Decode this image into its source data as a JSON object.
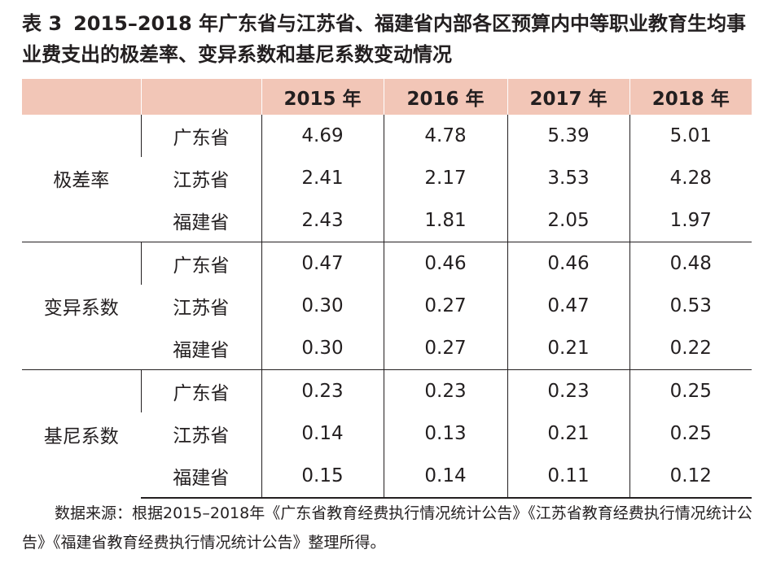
{
  "title": {
    "number": "表 3",
    "text": "2015–2018 年广东省与江苏省、福建省内部各区预算内中等职业教育生均事业费支出的极差率、变异系数和基尼系数变动情况"
  },
  "table": {
    "header": [
      "",
      "",
      "2015 年",
      "2016 年",
      "2017 年",
      "2018 年"
    ],
    "groups": [
      {
        "name": "极差率",
        "rows": [
          {
            "province": "广东省",
            "values": [
              "4.69",
              "4.78",
              "5.39",
              "5.01"
            ]
          },
          {
            "province": "江苏省",
            "values": [
              "2.41",
              "2.17",
              "3.53",
              "4.28"
            ]
          },
          {
            "province": "福建省",
            "values": [
              "2.43",
              "1.81",
              "2.05",
              "1.97"
            ]
          }
        ]
      },
      {
        "name": "变异系数",
        "rows": [
          {
            "province": "广东省",
            "values": [
              "0.47",
              "0.46",
              "0.46",
              "0.48"
            ]
          },
          {
            "province": "江苏省",
            "values": [
              "0.30",
              "0.27",
              "0.47",
              "0.53"
            ]
          },
          {
            "province": "福建省",
            "values": [
              "0.30",
              "0.27",
              "0.21",
              "0.22"
            ]
          }
        ]
      },
      {
        "name": "基尼系数",
        "rows": [
          {
            "province": "广东省",
            "values": [
              "0.23",
              "0.23",
              "0.23",
              "0.25"
            ]
          },
          {
            "province": "江苏省",
            "values": [
              "0.14",
              "0.13",
              "0.21",
              "0.25"
            ]
          },
          {
            "province": "福建省",
            "values": [
              "0.15",
              "0.14",
              "0.11",
              "0.12"
            ]
          }
        ]
      }
    ]
  },
  "note": "数据来源：根据2015–2018年《广东省教育经费执行情况统计公告》《江苏省教育经费执行情况统计公告》《福建省教育经费执行情况统计公告》整理所得。",
  "colors": {
    "header_bg": "#f2c6b7",
    "text": "#231f20",
    "rule": "#231f20"
  }
}
